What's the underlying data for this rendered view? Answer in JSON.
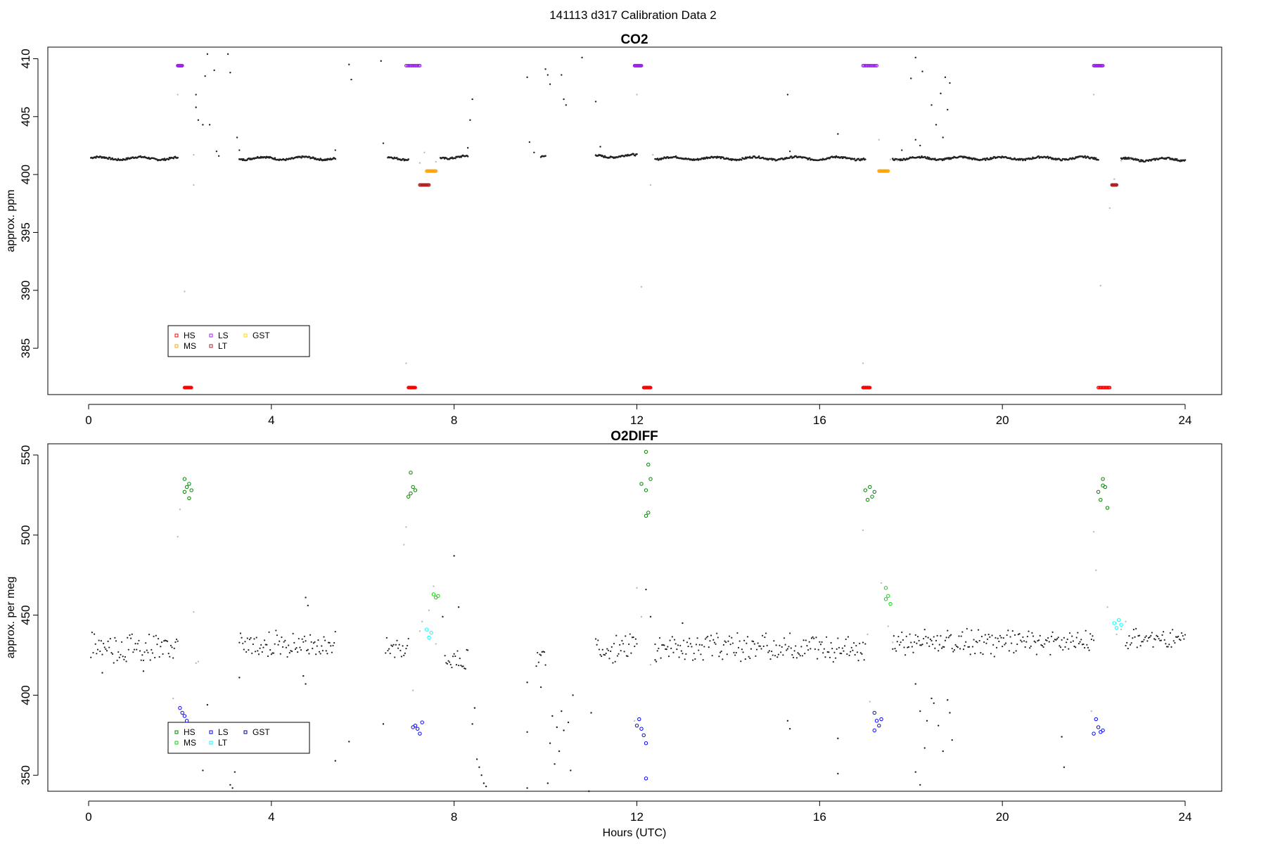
{
  "page_title": "141113   d317   Calibration Data 2",
  "colors": {
    "data": "#222222",
    "transition": "#bbbbbb",
    "HS_co2": "#ff0000",
    "MS_co2": "#ffa500",
    "LS_co2": "#a020f0",
    "LT_co2": "#b22222",
    "GST_co2": "#ffd700",
    "HS_o2": "#008000",
    "MS_o2": "#00dd00",
    "LS_o2": "#0000ff",
    "LT_o2": "#00ffff",
    "GST_o2": "#00008b"
  },
  "chart_data": [
    {
      "type": "scatter",
      "title": "CO2",
      "xlabel": "",
      "ylabel": "approx. ppm",
      "xlim": [
        -0.9,
        24.9
      ],
      "ylim": [
        381.0,
        411.0
      ],
      "xticks": [
        0,
        4,
        8,
        12,
        16,
        20,
        24
      ],
      "yticks": [
        385,
        390,
        395,
        400,
        405,
        410
      ],
      "baseline_segments": [
        {
          "x": [
            0.05,
            1.95
          ],
          "y": 401.4
        },
        {
          "x": [
            3.3,
            5.4
          ],
          "y": 401.4
        },
        {
          "x": [
            6.55,
            7.0
          ],
          "y": 401.4
        },
        {
          "x": [
            7.7,
            8.3
          ],
          "y": 401.5
        },
        {
          "x": [
            9.9,
            10.0
          ],
          "y": 401.5
        },
        {
          "x": [
            11.1,
            12.0
          ],
          "y": 401.6
        },
        {
          "x": [
            12.4,
            17.0
          ],
          "y": 401.4
        },
        {
          "x": [
            17.6,
            22.1
          ],
          "y": 401.4
        },
        {
          "x": [
            22.6,
            24.0
          ],
          "y": 401.3
        }
      ],
      "scattered_points": [
        [
          2.6,
          410.4
        ],
        [
          3.05,
          410.4
        ],
        [
          2.55,
          408.5
        ],
        [
          2.75,
          409.0
        ],
        [
          3.1,
          408.8
        ],
        [
          2.35,
          406.9
        ],
        [
          2.4,
          404.7
        ],
        [
          2.5,
          404.3
        ],
        [
          2.65,
          404.3
        ],
        [
          2.35,
          405.8
        ],
        [
          2.8,
          402.0
        ],
        [
          2.85,
          401.6
        ],
        [
          3.25,
          403.2
        ],
        [
          3.3,
          402.1
        ],
        [
          5.4,
          402.1
        ],
        [
          5.7,
          409.5
        ],
        [
          5.75,
          408.2
        ],
        [
          6.4,
          409.8
        ],
        [
          6.45,
          402.7
        ],
        [
          8.3,
          402.3
        ],
        [
          8.35,
          404.7
        ],
        [
          8.4,
          406.5
        ],
        [
          9.6,
          408.4
        ],
        [
          9.65,
          402.8
        ],
        [
          9.75,
          401.9
        ],
        [
          10.0,
          409.1
        ],
        [
          10.05,
          408.6
        ],
        [
          10.1,
          407.8
        ],
        [
          10.35,
          408.6
        ],
        [
          10.4,
          406.5
        ],
        [
          10.45,
          406.0
        ],
        [
          10.8,
          410.1
        ],
        [
          11.1,
          406.3
        ],
        [
          11.2,
          402.4
        ],
        [
          15.3,
          406.9
        ],
        [
          15.35,
          402.0
        ],
        [
          16.4,
          403.5
        ],
        [
          16.5,
          401.4
        ],
        [
          18.1,
          410.1
        ],
        [
          18.25,
          408.9
        ],
        [
          18.0,
          408.3
        ],
        [
          18.45,
          406.0
        ],
        [
          18.55,
          404.3
        ],
        [
          18.65,
          407.0
        ],
        [
          18.75,
          408.4
        ],
        [
          18.8,
          405.6
        ],
        [
          18.85,
          407.9
        ],
        [
          18.7,
          403.2
        ],
        [
          18.1,
          403.0
        ],
        [
          18.2,
          402.5
        ],
        [
          17.8,
          402.1
        ]
      ],
      "transition_points": [
        [
          1.95,
          406.9
        ],
        [
          2.1,
          389.9
        ],
        [
          2.3,
          399.1
        ],
        [
          2.3,
          401.7
        ],
        [
          6.95,
          383.7
        ],
        [
          7.25,
          401.0
        ],
        [
          7.35,
          401.9
        ],
        [
          7.6,
          401.1
        ],
        [
          12.0,
          406.9
        ],
        [
          12.1,
          390.3
        ],
        [
          12.3,
          399.1
        ],
        [
          12.35,
          401.7
        ],
        [
          16.95,
          383.7
        ],
        [
          17.3,
          403.0
        ],
        [
          17.55,
          401.3
        ],
        [
          17.7,
          401.2
        ],
        [
          22.0,
          406.9
        ],
        [
          22.15,
          390.4
        ],
        [
          22.35,
          397.1
        ],
        [
          22.45,
          399.6
        ],
        [
          22.6,
          401.2
        ],
        [
          22.8,
          401.3
        ]
      ],
      "calibration_clusters": [
        {
          "series": "LS",
          "x": [
            1.95,
            2.05,
            6.95,
            7.25,
            11.95,
            12.1,
            16.95,
            17.25,
            22.0,
            22.2
          ],
          "y": 409.4
        },
        {
          "series": "HS",
          "x": [
            2.1,
            2.25,
            7.0,
            7.15,
            12.15,
            12.3,
            16.95,
            17.1,
            22.1,
            22.35
          ],
          "y": 381.6
        },
        {
          "series": "MS",
          "x": [
            7.4,
            7.6,
            17.3,
            17.5
          ],
          "y": 400.3
        },
        {
          "series": "LT",
          "x": [
            7.25,
            7.45,
            22.4,
            22.5
          ],
          "y": 399.1
        },
        {
          "series": "GST",
          "x": [],
          "y": 0
        }
      ],
      "legend": {
        "position": "bottom-left",
        "entries": [
          "HS",
          "MS",
          "LS",
          "LT",
          "GST"
        ]
      }
    },
    {
      "type": "scatter",
      "title": "O2DIFF",
      "xlabel": "Hours (UTC)",
      "ylabel": "approx. per meg",
      "xlim": [
        -0.9,
        24.9
      ],
      "ylim": [
        340,
        557
      ],
      "xticks": [
        0,
        4,
        8,
        12,
        16,
        20,
        24
      ],
      "yticks": [
        350,
        400,
        450,
        500,
        550
      ],
      "baseline_segments": [
        {
          "x": [
            0.05,
            1.95
          ],
          "y": 430,
          "spread": 8
        },
        {
          "x": [
            3.3,
            5.4
          ],
          "y": 432,
          "spread": 6
        },
        {
          "x": [
            6.5,
            7.0
          ],
          "y": 430,
          "spread": 6
        },
        {
          "x": [
            7.8,
            8.3
          ],
          "y": 422,
          "spread": 6
        },
        {
          "x": [
            9.8,
            10.0
          ],
          "y": 425,
          "spread": 5
        },
        {
          "x": [
            11.1,
            12.0
          ],
          "y": 430,
          "spread": 8
        },
        {
          "x": [
            12.4,
            17.0
          ],
          "y": 430,
          "spread": 7
        },
        {
          "x": [
            17.6,
            22.0
          ],
          "y": 433,
          "spread": 6
        },
        {
          "x": [
            22.7,
            24.0
          ],
          "y": 435,
          "spread": 4
        }
      ],
      "scattered_points": [
        [
          0.3,
          414
        ],
        [
          1.2,
          415
        ],
        [
          4.75,
          461
        ],
        [
          4.8,
          456
        ],
        [
          4.7,
          412
        ],
        [
          4.75,
          407
        ],
        [
          3.1,
          344
        ],
        [
          3.15,
          342
        ],
        [
          3.2,
          352
        ],
        [
          2.5,
          353
        ],
        [
          2.6,
          394
        ],
        [
          3.3,
          411
        ],
        [
          5.4,
          359
        ],
        [
          5.7,
          371
        ],
        [
          6.45,
          382
        ],
        [
          8.0,
          487
        ],
        [
          8.1,
          455
        ],
        [
          7.75,
          449
        ],
        [
          8.4,
          382
        ],
        [
          8.45,
          392
        ],
        [
          8.5,
          360
        ],
        [
          8.55,
          355
        ],
        [
          8.6,
          350
        ],
        [
          8.65,
          345
        ],
        [
          8.7,
          343
        ],
        [
          9.6,
          408
        ],
        [
          9.6,
          377
        ],
        [
          9.6,
          342
        ],
        [
          9.9,
          405
        ],
        [
          10.05,
          345
        ],
        [
          10.1,
          370
        ],
        [
          10.15,
          387
        ],
        [
          10.2,
          357
        ],
        [
          10.25,
          380
        ],
        [
          10.3,
          365
        ],
        [
          10.35,
          390
        ],
        [
          10.4,
          378
        ],
        [
          10.5,
          383
        ],
        [
          10.55,
          353
        ],
        [
          10.6,
          400
        ],
        [
          11.0,
          389
        ],
        [
          10.95,
          340
        ],
        [
          15.3,
          384
        ],
        [
          15.35,
          379
        ],
        [
          16.4,
          351
        ],
        [
          16.4,
          373
        ],
        [
          18.1,
          407
        ],
        [
          18.2,
          390
        ],
        [
          18.3,
          367
        ],
        [
          18.35,
          384
        ],
        [
          18.45,
          398
        ],
        [
          18.5,
          395
        ],
        [
          18.1,
          352
        ],
        [
          18.2,
          344
        ],
        [
          18.6,
          381
        ],
        [
          18.7,
          365
        ],
        [
          18.8,
          397
        ],
        [
          18.85,
          389
        ],
        [
          18.9,
          372
        ],
        [
          21.3,
          374
        ],
        [
          21.35,
          355
        ],
        [
          13.0,
          445
        ],
        [
          12.2,
          466
        ],
        [
          12.3,
          449
        ],
        [
          12.4,
          422
        ]
      ],
      "transition_points": [
        [
          2.0,
          516
        ],
        [
          1.95,
          499
        ],
        [
          1.85,
          398
        ],
        [
          2.3,
          452
        ],
        [
          2.4,
          421
        ],
        [
          2.35,
          420
        ],
        [
          6.95,
          505
        ],
        [
          6.9,
          494
        ],
        [
          7.1,
          403
        ],
        [
          7.25,
          440
        ],
        [
          7.3,
          446
        ],
        [
          7.45,
          453
        ],
        [
          7.55,
          468
        ],
        [
          7.6,
          432
        ],
        [
          12.0,
          467
        ],
        [
          12.1,
          449
        ],
        [
          11.95,
          384
        ],
        [
          12.3,
          419
        ],
        [
          16.95,
          503
        ],
        [
          17.05,
          438
        ],
        [
          17.1,
          396
        ],
        [
          17.35,
          470
        ],
        [
          17.5,
          443
        ],
        [
          17.6,
          433
        ],
        [
          22.0,
          502
        ],
        [
          22.05,
          478
        ],
        [
          21.95,
          390
        ],
        [
          22.3,
          455
        ],
        [
          22.5,
          438
        ],
        [
          22.6,
          441
        ],
        [
          22.7,
          446
        ]
      ],
      "calibration_clusters": [
        {
          "series": "HS",
          "points": [
            [
              2.1,
              535
            ],
            [
              2.15,
              530
            ],
            [
              2.2,
              523
            ],
            [
              2.25,
              528
            ],
            [
              2.1,
              527
            ],
            [
              2.2,
              532
            ],
            [
              7.05,
              539
            ],
            [
              7.1,
              530
            ],
            [
              7.0,
              524
            ],
            [
              7.15,
              528
            ],
            [
              7.05,
              526
            ],
            [
              12.2,
              552
            ],
            [
              12.25,
              544
            ],
            [
              12.1,
              532
            ],
            [
              12.2,
              528
            ],
            [
              12.3,
              535
            ],
            [
              12.2,
              512
            ],
            [
              12.25,
              514
            ],
            [
              17.0,
              528
            ],
            [
              17.1,
              530
            ],
            [
              17.15,
              524
            ],
            [
              17.2,
              527
            ],
            [
              17.05,
              522
            ],
            [
              22.2,
              535
            ],
            [
              22.25,
              530
            ],
            [
              22.15,
              522
            ],
            [
              22.3,
              517
            ],
            [
              22.1,
              527
            ],
            [
              22.2,
              531
            ]
          ]
        },
        {
          "series": "MS",
          "points": [
            [
              7.55,
              463
            ],
            [
              7.6,
              461
            ],
            [
              7.65,
              462
            ],
            [
              17.45,
              467
            ],
            [
              17.5,
              462
            ],
            [
              17.55,
              457
            ],
            [
              17.45,
              460
            ]
          ]
        },
        {
          "series": "LS",
          "points": [
            [
              2.0,
              392
            ],
            [
              2.05,
              389
            ],
            [
              2.1,
              387
            ],
            [
              2.15,
              384
            ],
            [
              7.15,
              381
            ],
            [
              7.2,
              379
            ],
            [
              7.25,
              376
            ],
            [
              7.3,
              383
            ],
            [
              7.1,
              380
            ],
            [
              12.05,
              385
            ],
            [
              12.1,
              379
            ],
            [
              12.15,
              375
            ],
            [
              12.2,
              370
            ],
            [
              12.0,
              381
            ],
            [
              12.2,
              348
            ],
            [
              17.2,
              389
            ],
            [
              17.25,
              384
            ],
            [
              17.3,
              381
            ],
            [
              17.2,
              378
            ],
            [
              17.35,
              385
            ],
            [
              22.05,
              385
            ],
            [
              22.1,
              380
            ],
            [
              22.15,
              377
            ],
            [
              22.0,
              376
            ],
            [
              22.2,
              378
            ]
          ]
        },
        {
          "series": "LT",
          "points": [
            [
              7.4,
              441
            ],
            [
              7.45,
              436
            ],
            [
              7.5,
              439
            ],
            [
              22.45,
              445
            ],
            [
              22.5,
              442
            ],
            [
              22.55,
              447
            ],
            [
              22.6,
              444
            ]
          ]
        },
        {
          "series": "GST",
          "points": []
        }
      ],
      "legend": {
        "position": "bottom-left",
        "entries": [
          "HS",
          "MS",
          "LS",
          "LT",
          "GST"
        ]
      }
    }
  ]
}
